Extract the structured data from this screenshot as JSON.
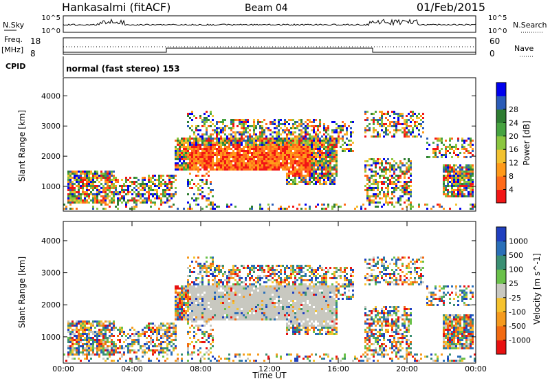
{
  "header": {
    "radar": "Hankasalmi (fitACF)",
    "beam": "Beam 04",
    "date": "01/Feb/2015"
  },
  "status_panels": {
    "nsky_label": "N.Sky",
    "nsky_ticks": [
      "10^5",
      "10^0"
    ],
    "nsearch_label": "N.Search",
    "nsearch_ticks": [
      "10^5",
      "10^0"
    ],
    "freq_label_1": "Freq.",
    "freq_label_2": "[MHz]",
    "freq_ticks": [
      "18",
      "8"
    ],
    "nave_label": "Nave",
    "nave_ticks": [
      "60",
      "0"
    ],
    "cpid_label": "CPID",
    "cpid_text": "normal (fast stereo) 153"
  },
  "chart_data": [
    {
      "type": "heatmap",
      "title": "",
      "ylabel": "Slant Range [km]",
      "xlabel": "Time UT",
      "xlim": [
        "00:00",
        "24:00"
      ],
      "ylim": [
        180,
        4600
      ],
      "yticks": [
        "1000",
        "2000",
        "3000",
        "4000"
      ],
      "xticks": [
        "00:00",
        "04:00",
        "08:00",
        "12:00",
        "16:00",
        "20:00",
        "00:00"
      ],
      "colorbar": {
        "label": "Power [dB]",
        "ticks": [
          "4",
          "8",
          "12",
          "16",
          "20",
          "24",
          "28"
        ],
        "colors": [
          "#0000ee",
          "#2b5cb8",
          "#2e7d32",
          "#46a340",
          "#8bc63f",
          "#f2c230",
          "#ff9a1a",
          "#ff6a1a",
          "#f21515"
        ]
      }
    },
    {
      "type": "heatmap",
      "title": "",
      "ylabel": "Slant Range [km]",
      "xlabel": "Time UT",
      "xlim": [
        "00:00",
        "24:00"
      ],
      "ylim": [
        180,
        4600
      ],
      "yticks": [
        "1000",
        "2000",
        "3000",
        "4000"
      ],
      "xticks": [
        "00:00",
        "04:00",
        "08:00",
        "12:00",
        "16:00",
        "20:00",
        "00:00"
      ],
      "colorbar": {
        "label": "Velocity [m s^-1]",
        "ticks": [
          "1000",
          "500",
          "100",
          "25",
          "-25",
          "-100",
          "-500",
          "-1000"
        ],
        "colors": [
          "#1f3fbf",
          "#2a6fb8",
          "#3a8f73",
          "#6ac14a",
          "#c8c8c0",
          "#f5c22e",
          "#f59a1e",
          "#f26a12",
          "#e81010"
        ]
      }
    }
  ]
}
